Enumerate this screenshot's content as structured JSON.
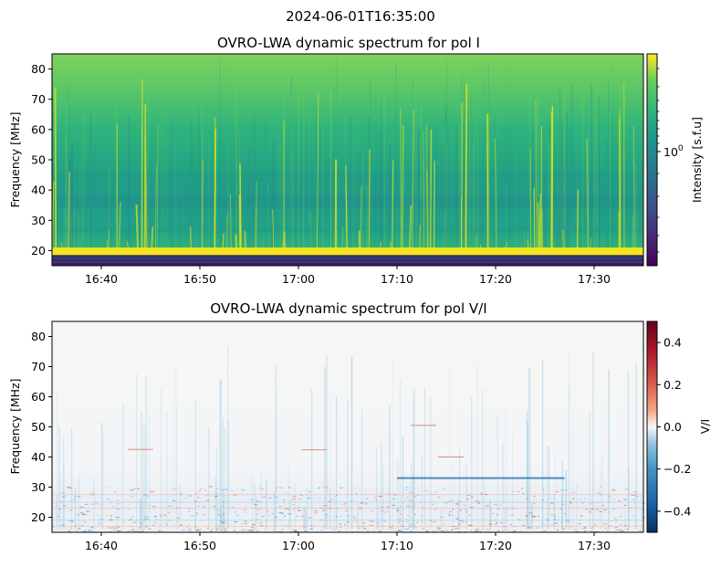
{
  "suptitle": "2024-06-01T16:35:00",
  "chart_data": [
    {
      "type": "heatmap",
      "title": "OVRO-LWA dynamic spectrum for pol I",
      "ylabel": "Frequency [MHz]",
      "xlabel": "",
      "x_range": [
        "16:35",
        "17:35"
      ],
      "x_ticks": [
        "16:40",
        "16:50",
        "17:00",
        "17:10",
        "17:20",
        "17:30"
      ],
      "ylim": [
        15,
        85
      ],
      "y_ticks": [
        20,
        30,
        40,
        50,
        60,
        70,
        80
      ],
      "colormap": "viridis",
      "colorbar": {
        "label": "Intensity [s.f.u]",
        "scale": "log",
        "tick_label": "10^0",
        "tick_value": 1
      },
      "features": [
        {
          "kind": "band",
          "freq_range": [
            18.5,
            21
          ],
          "level": "high",
          "color": "#f5e61f"
        },
        {
          "kind": "band",
          "freq_range": [
            15,
            18.5
          ],
          "level": "low",
          "color": "#3b1d5f"
        },
        {
          "kind": "radio_bursts",
          "description": "vertical bright striations across 16:35-17:35"
        }
      ]
    },
    {
      "type": "heatmap",
      "title": "OVRO-LWA dynamic spectrum for pol V/I",
      "ylabel": "Frequency [MHz]",
      "xlabel": "",
      "x_range": [
        "16:35",
        "17:35"
      ],
      "x_ticks": [
        "16:40",
        "16:50",
        "17:00",
        "17:10",
        "17:20",
        "17:30"
      ],
      "ylim": [
        15,
        85
      ],
      "y_ticks": [
        20,
        30,
        40,
        50,
        60,
        70,
        80
      ],
      "colormap": "RdBu_r",
      "colorbar": {
        "label": "V/I",
        "range": [
          -0.5,
          0.5
        ],
        "ticks": [
          "0.4",
          "0.2",
          "0.0",
          "−0.2",
          "−0.4"
        ],
        "tick_values": [
          0.4,
          0.2,
          0.0,
          -0.2,
          -0.4
        ]
      },
      "features": [
        {
          "kind": "line",
          "time_range": [
            "17:10",
            "17:27"
          ],
          "freq": 33,
          "value": -0.35
        },
        {
          "kind": "noise",
          "freq_range": [
            15,
            30
          ],
          "description": "red/blue speckle at low frequencies"
        }
      ]
    }
  ],
  "colors": {
    "viridis_low": "#440154",
    "viridis_high": "#fde725",
    "rdbu_low": "#053061",
    "rdbu_high": "#67001f"
  }
}
